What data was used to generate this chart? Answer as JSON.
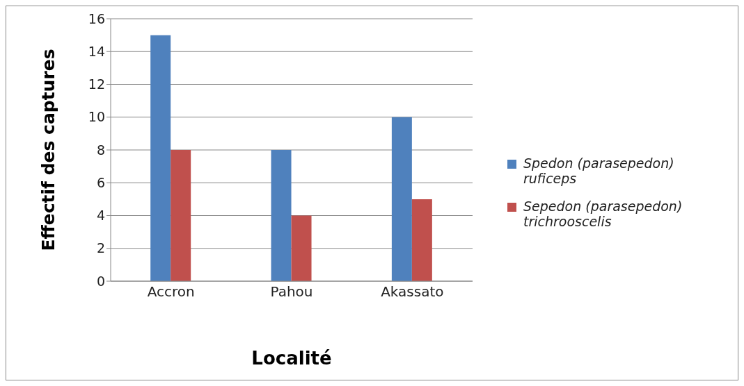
{
  "chart_data": {
    "type": "bar",
    "xlabel": "Localité",
    "ylabel": "Effectif des captures",
    "categories": [
      "Accron",
      "Pahou",
      "Akassato"
    ],
    "series": [
      {
        "name": "Spedon (parasepedon) ruficeps",
        "color": "#4f81bd",
        "values": [
          15,
          8,
          10
        ]
      },
      {
        "name": "Sepedon (parasepedon) trichrooscelis",
        "color": "#c0504d",
        "values": [
          8,
          4,
          5
        ]
      }
    ],
    "ylim": [
      0,
      16
    ],
    "yticks": [
      0,
      2,
      4,
      6,
      8,
      10,
      12,
      14,
      16
    ],
    "grid": "y",
    "legend": "right"
  }
}
